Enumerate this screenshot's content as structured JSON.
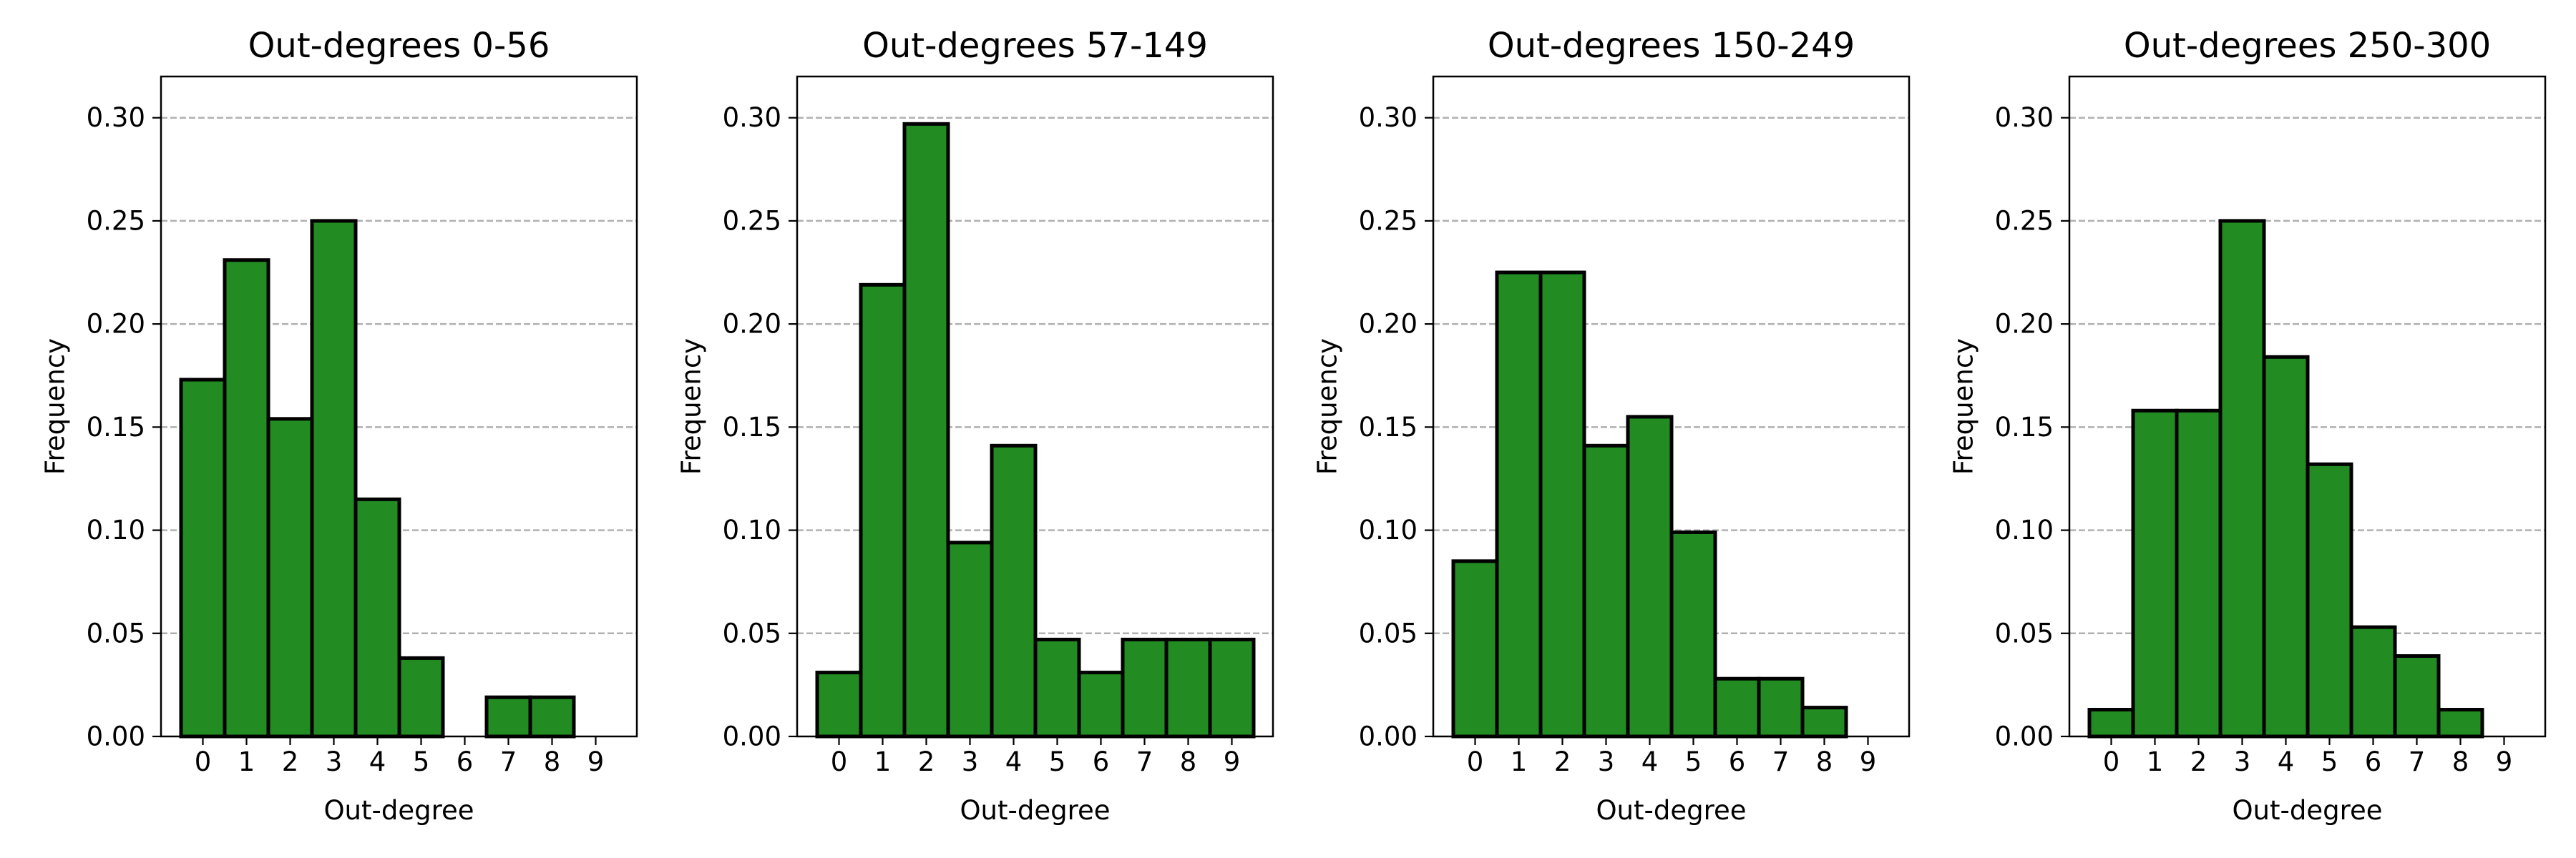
{
  "chart_data": [
    {
      "type": "bar",
      "title": "Out-degrees 0-56",
      "xlabel": "Out-degree",
      "ylabel": "Frequency",
      "categories": [
        "0",
        "1",
        "2",
        "3",
        "4",
        "5",
        "6",
        "7",
        "8",
        "9"
      ],
      "values": [
        0.173,
        0.231,
        0.154,
        0.25,
        0.115,
        0.038,
        0.0,
        0.019,
        0.019,
        0.0
      ],
      "ylim": [
        0,
        0.32
      ],
      "yticks": [
        "0.00",
        "0.05",
        "0.10",
        "0.15",
        "0.20",
        "0.25",
        "0.30"
      ],
      "grid": "y-dashed"
    },
    {
      "type": "bar",
      "title": "Out-degrees 57-149",
      "xlabel": "Out-degree",
      "ylabel": "Frequency",
      "categories": [
        "0",
        "1",
        "2",
        "3",
        "4",
        "5",
        "6",
        "7",
        "8",
        "9"
      ],
      "values": [
        0.031,
        0.219,
        0.297,
        0.094,
        0.141,
        0.047,
        0.031,
        0.047,
        0.047,
        0.047
      ],
      "ylim": [
        0,
        0.32
      ],
      "yticks": [
        "0.00",
        "0.05",
        "0.10",
        "0.15",
        "0.20",
        "0.25",
        "0.30"
      ],
      "grid": "y-dashed"
    },
    {
      "type": "bar",
      "title": "Out-degrees 150-249",
      "xlabel": "Out-degree",
      "ylabel": "Frequency",
      "categories": [
        "0",
        "1",
        "2",
        "3",
        "4",
        "5",
        "6",
        "7",
        "8",
        "9"
      ],
      "values": [
        0.085,
        0.225,
        0.225,
        0.141,
        0.155,
        0.099,
        0.028,
        0.028,
        0.014,
        0.0
      ],
      "ylim": [
        0,
        0.32
      ],
      "yticks": [
        "0.00",
        "0.05",
        "0.10",
        "0.15",
        "0.20",
        "0.25",
        "0.30"
      ],
      "grid": "y-dashed"
    },
    {
      "type": "bar",
      "title": "Out-degrees 250-300",
      "xlabel": "Out-degree",
      "ylabel": "Frequency",
      "categories": [
        "0",
        "1",
        "2",
        "3",
        "4",
        "5",
        "6",
        "7",
        "8",
        "9"
      ],
      "values": [
        0.013,
        0.158,
        0.158,
        0.25,
        0.184,
        0.132,
        0.053,
        0.039,
        0.013,
        0.0
      ],
      "ylim": [
        0,
        0.32
      ],
      "yticks": [
        "0.00",
        "0.05",
        "0.10",
        "0.15",
        "0.20",
        "0.25",
        "0.30"
      ],
      "grid": "y-dashed"
    }
  ],
  "colors": {
    "bar_fill": "#228b22",
    "bar_edge": "#000000",
    "grid": "#b0b0b0",
    "axis": "#000000"
  }
}
